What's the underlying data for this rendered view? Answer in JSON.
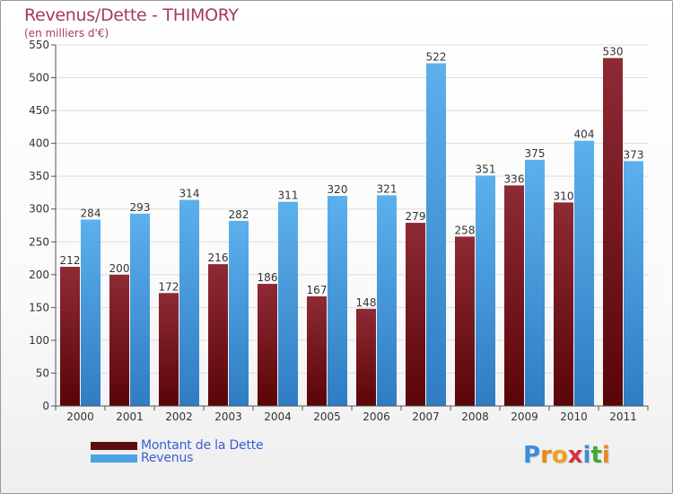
{
  "chart_data": {
    "type": "bar",
    "title": "Revenus/Dette - THIMORY",
    "subtitle": "(en milliers d'€)",
    "categories": [
      "2000",
      "2001",
      "2002",
      "2003",
      "2004",
      "2005",
      "2006",
      "2007",
      "2008",
      "2009",
      "2010",
      "2011"
    ],
    "series": [
      {
        "name": "Montant de la Dette",
        "values": [
          212,
          200,
          172,
          216,
          186,
          167,
          148,
          279,
          258,
          336,
          310,
          530
        ],
        "color": "#7a1e24"
      },
      {
        "name": "Revenus",
        "values": [
          284,
          293,
          314,
          282,
          311,
          320,
          321,
          522,
          351,
          375,
          404,
          373
        ],
        "color": "#4ba3e3"
      }
    ],
    "yticks": [
      0,
      50,
      100,
      150,
      200,
      250,
      300,
      350,
      400,
      450,
      500,
      550
    ],
    "ylim": [
      0,
      550
    ],
    "grid": true,
    "legend": "bottom-left"
  },
  "legend": {
    "items": [
      {
        "label": "Montant de la Dette",
        "color": "#5e0d12"
      },
      {
        "label": "Revenus",
        "color": "#4ba3e3"
      }
    ]
  },
  "logo": {
    "text": "Proxiti",
    "letter_colors": [
      "#3a8fd8",
      "#e88a1a",
      "#f0a020",
      "#d83040",
      "#3a8fd8",
      "#44aa33",
      "#e88a1a"
    ]
  }
}
